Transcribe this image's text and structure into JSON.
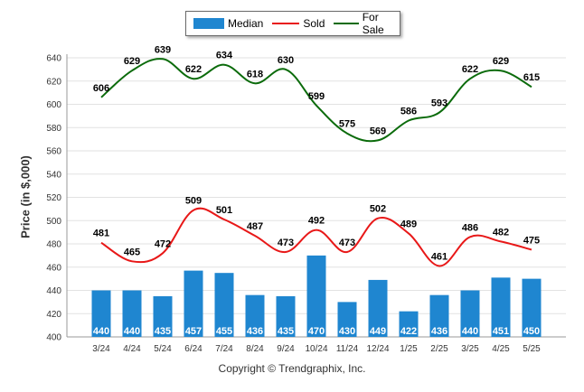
{
  "chart_data": {
    "type": "bar",
    "categories": [
      "3/24",
      "4/24",
      "5/24",
      "6/24",
      "7/24",
      "8/24",
      "9/24",
      "10/24",
      "11/24",
      "12/24",
      "1/25",
      "2/25",
      "3/25",
      "4/25",
      "5/25"
    ],
    "series": [
      {
        "name": "Median",
        "kind": "bar",
        "color": "#1f86d0",
        "values": [
          440,
          440,
          435,
          457,
          455,
          436,
          435,
          470,
          430,
          449,
          422,
          436,
          440,
          451,
          450
        ]
      },
      {
        "name": "Sold",
        "kind": "line",
        "color": "#e81818",
        "values": [
          481,
          465,
          472,
          509,
          501,
          487,
          473,
          492,
          473,
          502,
          489,
          461,
          486,
          482,
          475
        ]
      },
      {
        "name": "For Sale",
        "kind": "line",
        "color": "#0b6b0b",
        "values": [
          606,
          629,
          639,
          622,
          634,
          618,
          630,
          599,
          575,
          569,
          586,
          593,
          622,
          629,
          615
        ]
      }
    ],
    "ylabel": "Price (in $,000)",
    "ylim": [
      400,
      640
    ],
    "yticks": [
      400,
      420,
      440,
      460,
      480,
      500,
      520,
      540,
      560,
      580,
      600,
      620,
      640
    ],
    "grid": true,
    "legend": "top-center"
  },
  "legend": {
    "median_label": "Median",
    "sold_label": "Sold",
    "forsale_label": "For Sale"
  },
  "footer": {
    "copyright": "Copyright © Trendgraphix, Inc."
  }
}
